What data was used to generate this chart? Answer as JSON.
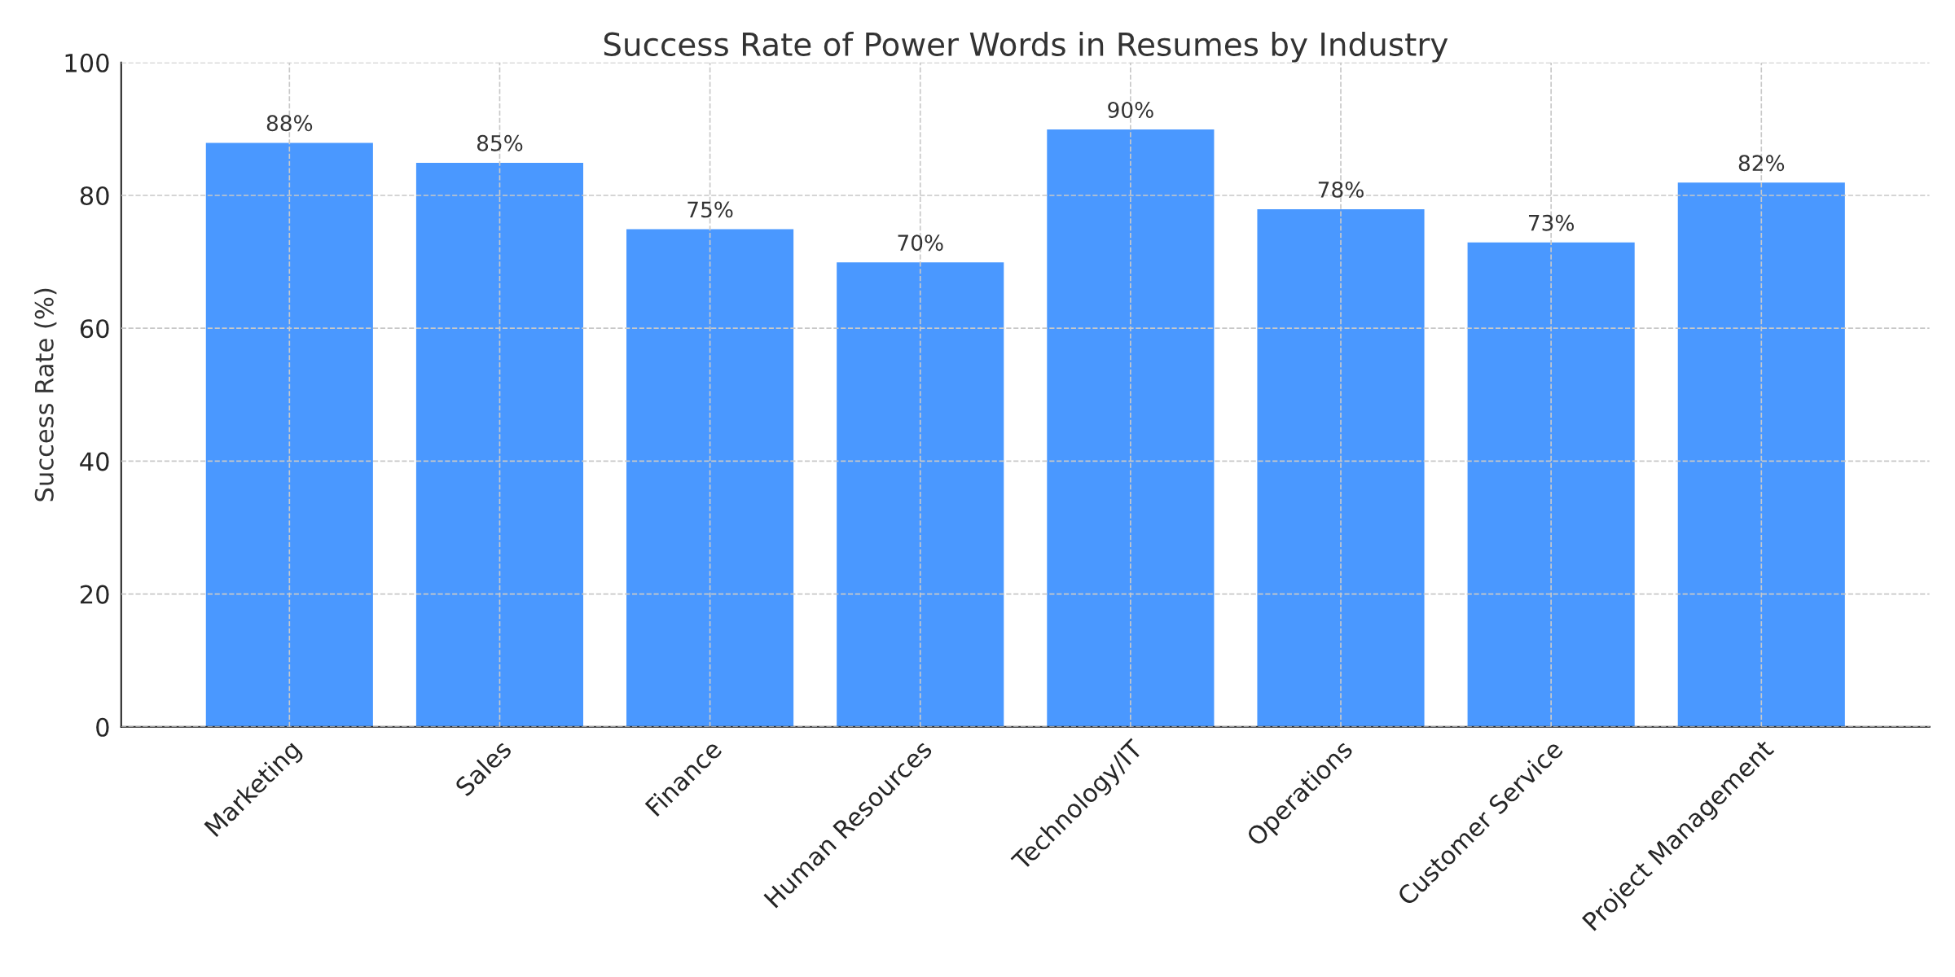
{
  "chart_data": {
    "type": "bar",
    "title": "Success Rate of Power Words in Resumes by Industry",
    "ylabel": "Success Rate (%)",
    "categories": [
      "Marketing",
      "Sales",
      "Finance",
      "Human Resources",
      "Technology/IT",
      "Operations",
      "Customer Service",
      "Project Management"
    ],
    "values": [
      88,
      85,
      75,
      70,
      90,
      78,
      73,
      82
    ],
    "value_labels": [
      "88%",
      "85%",
      "75%",
      "70%",
      "90%",
      "78%",
      "73%",
      "82%"
    ],
    "color": "#4a98ff",
    "ylim": [
      0,
      100
    ],
    "yticks": [
      0,
      20,
      40,
      60,
      80,
      100
    ],
    "grid": true,
    "line_style": "dashed"
  }
}
